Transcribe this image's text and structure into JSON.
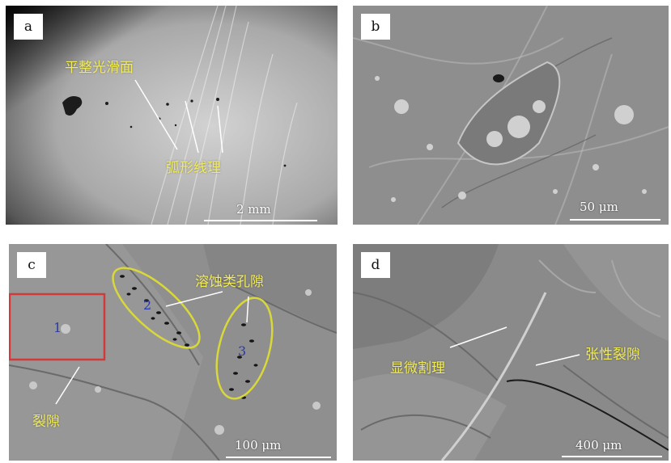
{
  "panels": {
    "a": {
      "letter": "a",
      "annotations": {
        "smooth_surface": "平整光滑面",
        "arc_lines": "弧形线理"
      },
      "scale": "2 mm"
    },
    "b": {
      "letter": "b",
      "scale": "50 μm"
    },
    "c": {
      "letter": "c",
      "annotations": {
        "dissolution_pores": "溶蚀类孔隙",
        "fracture": "裂隙"
      },
      "regions": [
        "1",
        "2",
        "3"
      ],
      "scale": "100 μm"
    },
    "d": {
      "letter": "d",
      "annotations": {
        "micro_cleat": "显微割理",
        "tension_fracture": "张性裂隙"
      },
      "scale": "400 μm"
    }
  },
  "colors": {
    "annotation_text": "#f2ec5a",
    "ellipse_outline": "#d8d83a",
    "region_box": "#d23a3a",
    "region_number": "#2a3aa8",
    "scale_bar": "#ffffff"
  }
}
